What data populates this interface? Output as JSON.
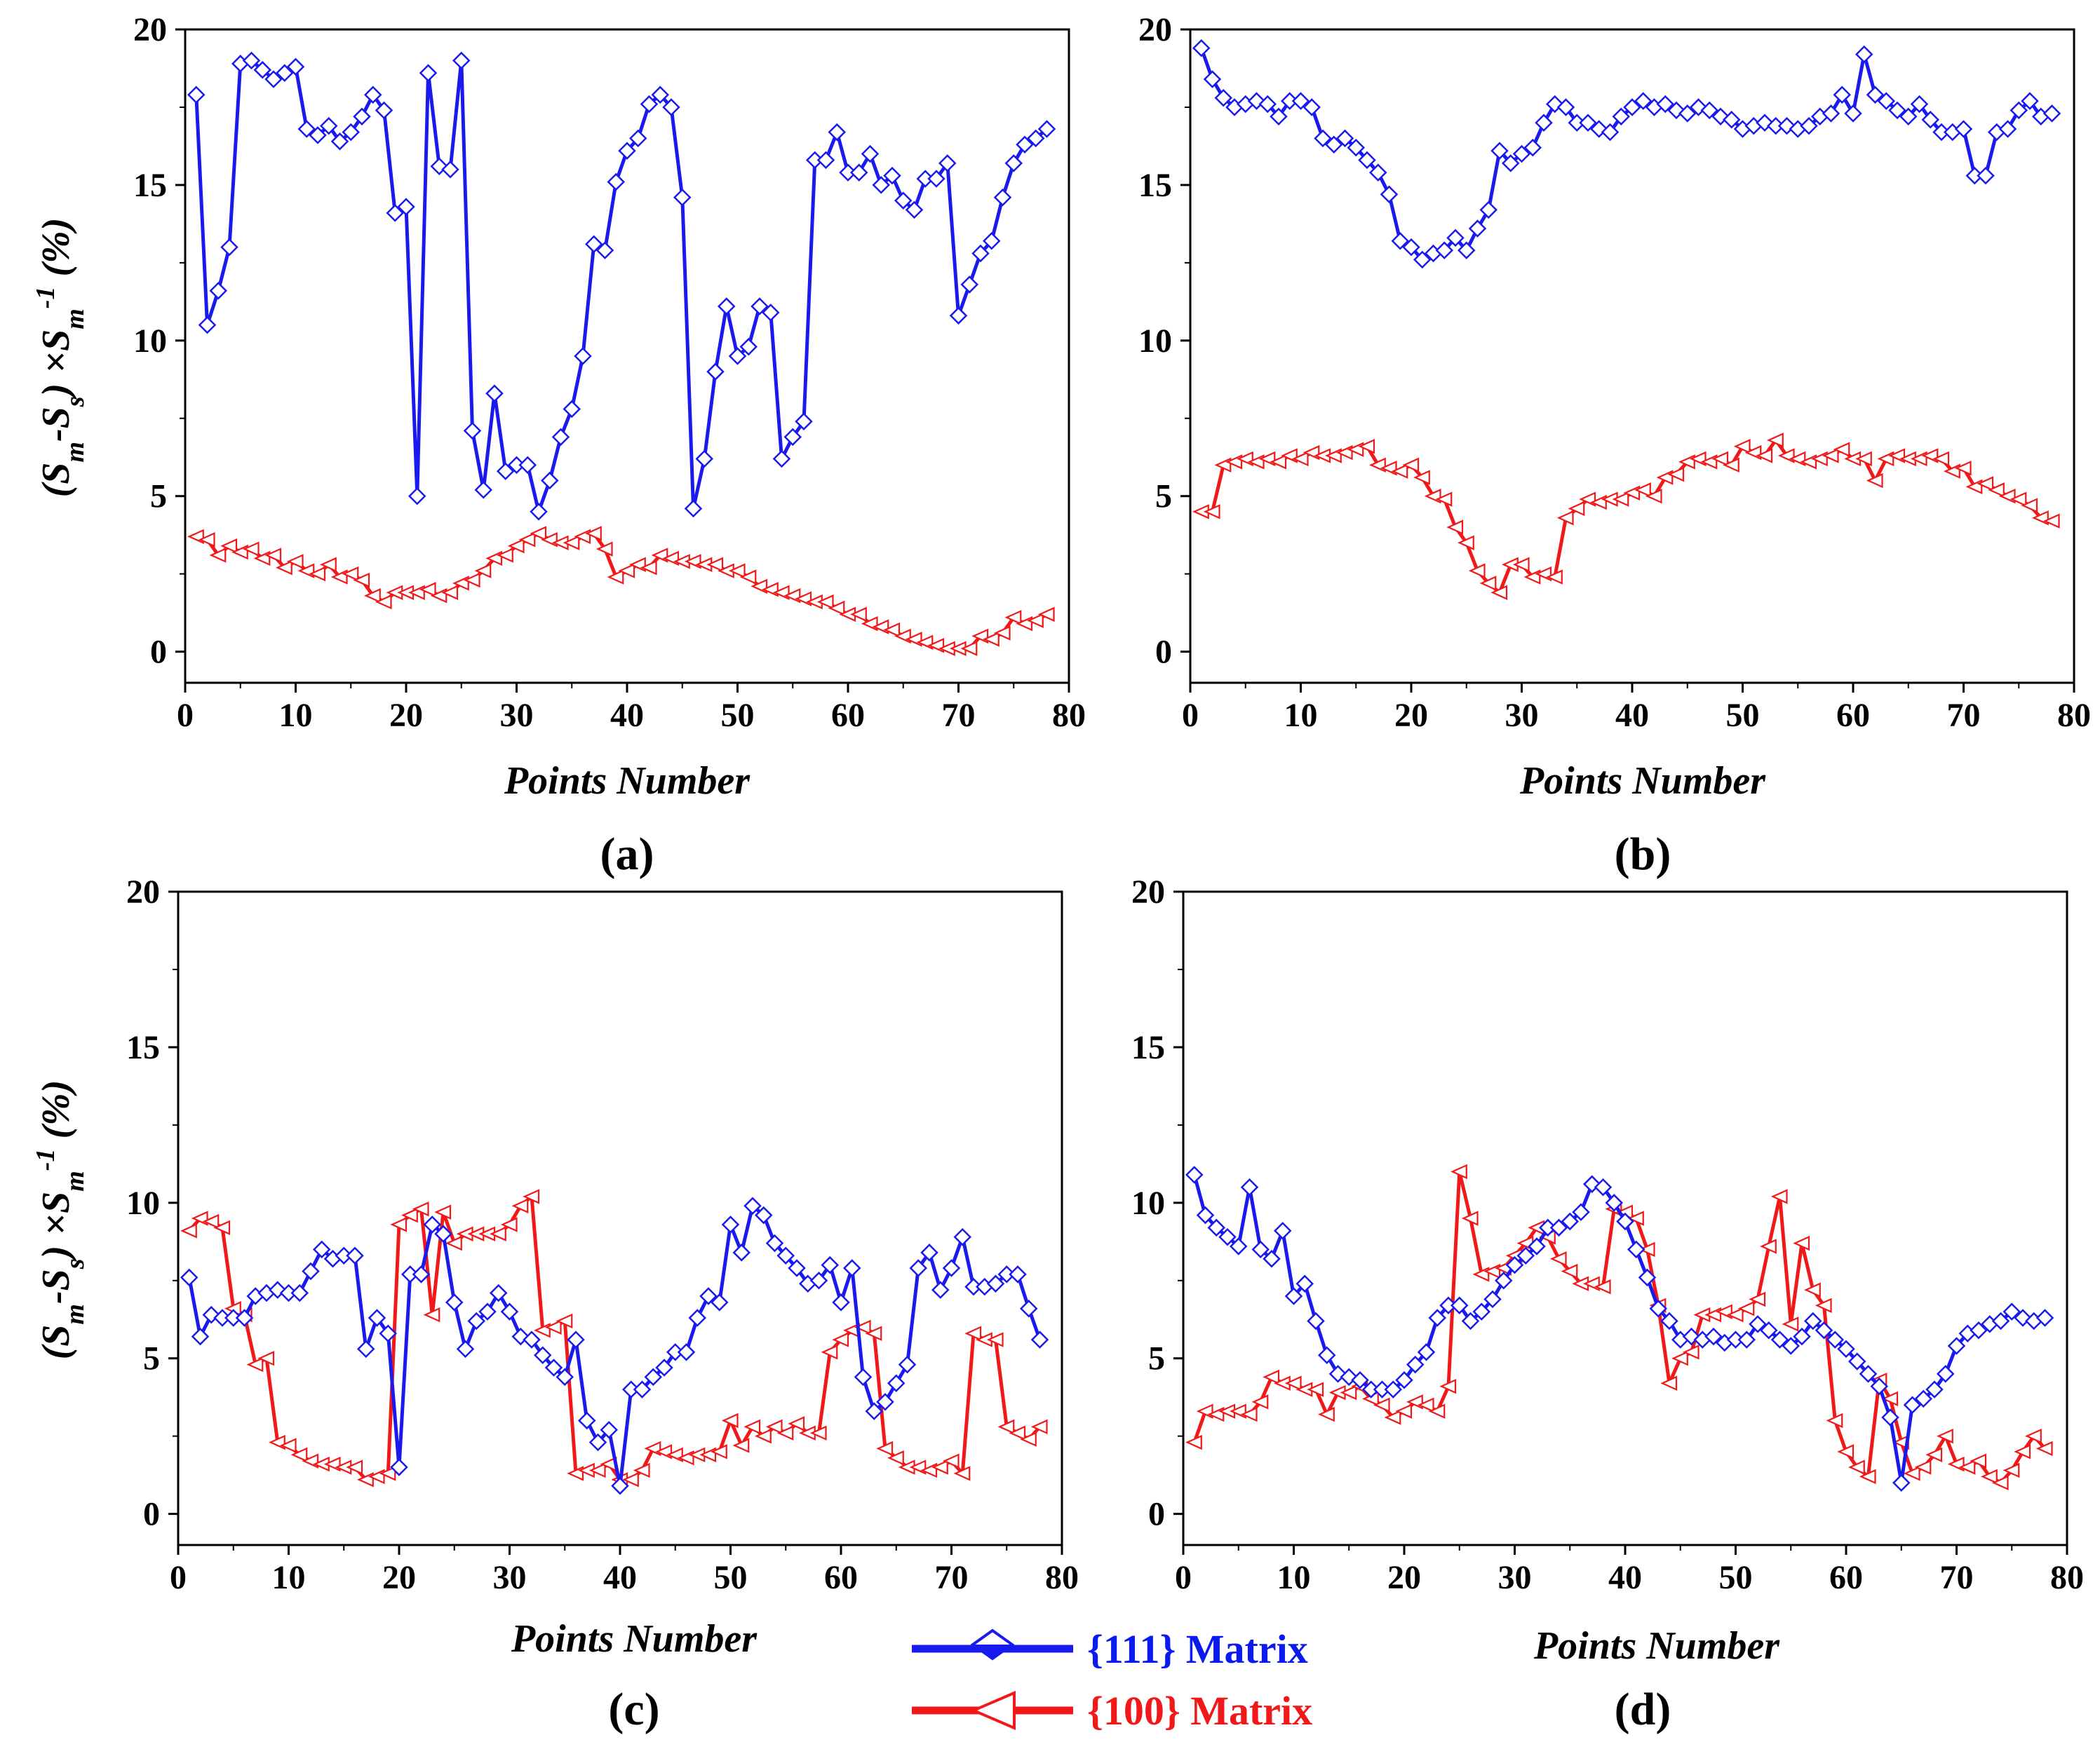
{
  "colors": {
    "blue": "#1a1aee",
    "red": "#f01818"
  },
  "legend": {
    "entries": [
      {
        "label": "{111} Matrix",
        "color": "#1a1aee",
        "marker": "diamond"
      },
      {
        "label": "{100} Matrix",
        "color": "#f01818",
        "marker": "triangle-left"
      }
    ]
  },
  "chart_data": [
    {
      "type": "line",
      "panel_label": "(a)",
      "xlabel": "Points Number",
      "ylabel": "(Sm-Ss) ×Sm-1 (%)",
      "ylabel_parts": [
        "(S",
        "m",
        "-S",
        "s",
        ") ×S",
        "m",
        "-1",
        " (%)"
      ],
      "xlim": [
        0,
        80
      ],
      "ylim": [
        -1,
        20
      ],
      "xticks": [
        0,
        10,
        20,
        30,
        40,
        50,
        60,
        70,
        80
      ],
      "yticks": [
        0,
        5,
        10,
        15,
        20
      ],
      "grid": false,
      "x": [
        1,
        2,
        3,
        4,
        5,
        6,
        7,
        8,
        9,
        10,
        11,
        12,
        13,
        14,
        15,
        16,
        17,
        18,
        19,
        20,
        21,
        22,
        23,
        24,
        25,
        26,
        27,
        28,
        29,
        30,
        31,
        32,
        33,
        34,
        35,
        36,
        37,
        38,
        39,
        40,
        41,
        42,
        43,
        44,
        45,
        46,
        47,
        48,
        49,
        50,
        51,
        52,
        53,
        54,
        55,
        56,
        57,
        58,
        59,
        60,
        61,
        62,
        63,
        64,
        65,
        66,
        67,
        68,
        69,
        70,
        71,
        72,
        73,
        74,
        75,
        76,
        77,
        78
      ],
      "series": [
        {
          "name": "{111} Matrix",
          "color": "#1a1aee",
          "marker": "diamond",
          "values": [
            17.9,
            10.5,
            11.6,
            13.0,
            18.9,
            19.0,
            18.7,
            18.4,
            18.6,
            18.8,
            16.8,
            16.6,
            16.9,
            16.4,
            16.7,
            17.2,
            17.9,
            17.4,
            14.1,
            14.3,
            5.0,
            18.6,
            15.6,
            15.5,
            19.0,
            7.1,
            5.2,
            8.3,
            5.8,
            6.0,
            6.0,
            4.5,
            5.5,
            6.9,
            7.8,
            9.5,
            13.1,
            12.9,
            15.1,
            16.1,
            16.5,
            17.6,
            17.9,
            17.5,
            14.6,
            4.6,
            6.2,
            9.0,
            11.1,
            9.5,
            9.8,
            11.1,
            10.9,
            6.2,
            6.9,
            7.4,
            15.8,
            15.8,
            16.7,
            15.4,
            15.4,
            16.0,
            15.0,
            15.3,
            14.5,
            14.2,
            15.2,
            15.2,
            15.7,
            10.8,
            11.8,
            12.8,
            13.2,
            14.6,
            15.7,
            16.3,
            16.5,
            16.8
          ]
        },
        {
          "name": "{100} Matrix",
          "color": "#f01818",
          "marker": "triangle-left",
          "values": [
            3.7,
            3.6,
            3.1,
            3.4,
            3.2,
            3.3,
            3.0,
            3.1,
            2.7,
            2.9,
            2.6,
            2.5,
            2.8,
            2.4,
            2.5,
            2.3,
            1.8,
            1.6,
            1.9,
            1.9,
            1.9,
            2.0,
            1.8,
            1.9,
            2.2,
            2.3,
            2.6,
            3.0,
            3.1,
            3.4,
            3.6,
            3.8,
            3.6,
            3.5,
            3.5,
            3.7,
            3.8,
            3.3,
            2.4,
            2.6,
            2.8,
            2.7,
            3.1,
            3.0,
            2.9,
            2.9,
            2.8,
            2.8,
            2.6,
            2.6,
            2.4,
            2.1,
            2.0,
            1.9,
            1.8,
            1.7,
            1.6,
            1.6,
            1.4,
            1.2,
            1.2,
            0.9,
            0.8,
            0.7,
            0.5,
            0.4,
            0.3,
            0.2,
            0.1,
            0.1,
            0.1,
            0.5,
            0.4,
            0.6,
            1.1,
            0.9,
            1.0,
            1.2
          ]
        }
      ]
    },
    {
      "type": "line",
      "panel_label": "(b)",
      "xlabel": "Points Number",
      "ylabel": "",
      "xlim": [
        0,
        80
      ],
      "ylim": [
        -1,
        20
      ],
      "xticks": [
        0,
        10,
        20,
        30,
        40,
        50,
        60,
        70,
        80
      ],
      "yticks": [
        0,
        5,
        10,
        15,
        20
      ],
      "grid": false,
      "x": [
        1,
        2,
        3,
        4,
        5,
        6,
        7,
        8,
        9,
        10,
        11,
        12,
        13,
        14,
        15,
        16,
        17,
        18,
        19,
        20,
        21,
        22,
        23,
        24,
        25,
        26,
        27,
        28,
        29,
        30,
        31,
        32,
        33,
        34,
        35,
        36,
        37,
        38,
        39,
        40,
        41,
        42,
        43,
        44,
        45,
        46,
        47,
        48,
        49,
        50,
        51,
        52,
        53,
        54,
        55,
        56,
        57,
        58,
        59,
        60,
        61,
        62,
        63,
        64,
        65,
        66,
        67,
        68,
        69,
        70,
        71,
        72,
        73,
        74,
        75,
        76,
        77,
        78
      ],
      "series": [
        {
          "name": "{111} Matrix",
          "color": "#1a1aee",
          "marker": "diamond",
          "values": [
            19.4,
            18.4,
            17.8,
            17.5,
            17.6,
            17.7,
            17.6,
            17.2,
            17.7,
            17.7,
            17.5,
            16.5,
            16.3,
            16.5,
            16.2,
            15.8,
            15.4,
            14.7,
            13.2,
            13.0,
            12.6,
            12.8,
            12.9,
            13.3,
            12.9,
            13.6,
            14.2,
            16.1,
            15.7,
            16.0,
            16.2,
            17.0,
            17.6,
            17.5,
            17.0,
            17.0,
            16.8,
            16.7,
            17.2,
            17.5,
            17.7,
            17.5,
            17.6,
            17.4,
            17.3,
            17.5,
            17.4,
            17.2,
            17.1,
            16.8,
            16.9,
            17.0,
            16.9,
            16.9,
            16.8,
            16.9,
            17.2,
            17.3,
            17.9,
            17.3,
            19.2,
            17.9,
            17.7,
            17.4,
            17.2,
            17.6,
            17.1,
            16.7,
            16.7,
            16.8,
            15.3,
            15.3,
            16.7,
            16.8,
            17.4,
            17.7,
            17.2,
            17.3
          ]
        },
        {
          "name": "{100} Matrix",
          "color": "#f01818",
          "marker": "triangle-left",
          "values": [
            4.5,
            4.5,
            6.0,
            6.1,
            6.2,
            6.1,
            6.2,
            6.1,
            6.3,
            6.2,
            6.4,
            6.3,
            6.3,
            6.4,
            6.5,
            6.6,
            6.0,
            5.9,
            5.8,
            6.0,
            5.6,
            5.0,
            4.9,
            4.0,
            3.5,
            2.6,
            2.2,
            1.9,
            2.8,
            2.8,
            2.4,
            2.5,
            2.4,
            4.3,
            4.6,
            4.9,
            4.8,
            4.9,
            4.9,
            5.1,
            5.2,
            5.0,
            5.6,
            5.7,
            6.1,
            6.2,
            6.1,
            6.2,
            6.0,
            6.6,
            6.4,
            6.3,
            6.8,
            6.3,
            6.2,
            6.1,
            6.2,
            6.3,
            6.5,
            6.2,
            6.2,
            5.5,
            6.2,
            6.3,
            6.2,
            6.2,
            6.3,
            6.2,
            5.8,
            5.9,
            5.3,
            5.4,
            5.2,
            5.0,
            4.9,
            4.7,
            4.3,
            4.2
          ]
        }
      ]
    },
    {
      "type": "line",
      "panel_label": "(c)",
      "xlabel": "Points Number",
      "ylabel": "(Sm-Ss) ×Sm-1 (%)",
      "ylabel_parts": [
        "(S",
        "m",
        "-S",
        "s",
        ") ×S",
        "m",
        "-1",
        " (%)"
      ],
      "xlim": [
        0,
        80
      ],
      "ylim": [
        -1,
        20
      ],
      "xticks": [
        0,
        10,
        20,
        30,
        40,
        50,
        60,
        70,
        80
      ],
      "yticks": [
        0,
        5,
        10,
        15,
        20
      ],
      "grid": false,
      "x": [
        1,
        2,
        3,
        4,
        5,
        6,
        7,
        8,
        9,
        10,
        11,
        12,
        13,
        14,
        15,
        16,
        17,
        18,
        19,
        20,
        21,
        22,
        23,
        24,
        25,
        26,
        27,
        28,
        29,
        30,
        31,
        32,
        33,
        34,
        35,
        36,
        37,
        38,
        39,
        40,
        41,
        42,
        43,
        44,
        45,
        46,
        47,
        48,
        49,
        50,
        51,
        52,
        53,
        54,
        55,
        56,
        57,
        58,
        59,
        60,
        61,
        62,
        63,
        64,
        65,
        66,
        67,
        68,
        69,
        70,
        71,
        72,
        73,
        74,
        75,
        76,
        77,
        78
      ],
      "series": [
        {
          "name": "{111} Matrix",
          "color": "#1a1aee",
          "marker": "diamond",
          "values": [
            7.6,
            5.7,
            6.4,
            6.3,
            6.3,
            6.3,
            7.0,
            7.1,
            7.2,
            7.1,
            7.1,
            7.8,
            8.5,
            8.2,
            8.3,
            8.3,
            5.3,
            6.3,
            5.8,
            1.5,
            7.7,
            7.7,
            9.3,
            9.0,
            6.8,
            5.3,
            6.2,
            6.5,
            7.1,
            6.5,
            5.7,
            5.6,
            5.1,
            4.7,
            4.4,
            5.6,
            3.0,
            2.3,
            2.7,
            0.9,
            4.0,
            4.0,
            4.4,
            4.7,
            5.2,
            5.2,
            6.3,
            7.0,
            6.8,
            9.3,
            8.4,
            9.9,
            9.6,
            8.7,
            8.3,
            7.9,
            7.4,
            7.5,
            8.0,
            6.8,
            7.9,
            4.4,
            3.3,
            3.6,
            4.2,
            4.8,
            7.9,
            8.4,
            7.2,
            7.9,
            8.9,
            7.3,
            7.3,
            7.4,
            7.7,
            7.7,
            6.6,
            5.6
          ]
        },
        {
          "name": "{100} Matrix",
          "color": "#f01818",
          "marker": "triangle-left",
          "values": [
            9.1,
            9.5,
            9.4,
            9.2,
            6.6,
            6.4,
            4.8,
            5.0,
            2.3,
            2.2,
            1.9,
            1.7,
            1.6,
            1.6,
            1.5,
            1.5,
            1.1,
            1.2,
            1.3,
            9.3,
            9.6,
            9.8,
            6.4,
            9.7,
            8.7,
            9.0,
            9.0,
            9.0,
            9.0,
            9.3,
            9.9,
            10.2,
            5.9,
            6.0,
            6.2,
            1.3,
            1.4,
            1.4,
            1.6,
            1.1,
            1.1,
            1.4,
            2.1,
            2.0,
            1.9,
            1.8,
            1.9,
            1.9,
            2.0,
            3.0,
            2.2,
            2.8,
            2.5,
            2.8,
            2.6,
            2.9,
            2.6,
            2.6,
            5.2,
            5.6,
            5.9,
            6.0,
            5.8,
            2.1,
            1.8,
            1.5,
            1.5,
            1.4,
            1.5,
            1.7,
            1.3,
            5.8,
            5.6,
            5.6,
            2.8,
            2.6,
            2.4,
            2.8
          ]
        }
      ]
    },
    {
      "type": "line",
      "panel_label": "(d)",
      "xlabel": "Points Number",
      "ylabel": "",
      "xlim": [
        0,
        80
      ],
      "ylim": [
        -1,
        20
      ],
      "xticks": [
        0,
        10,
        20,
        30,
        40,
        50,
        60,
        70,
        80
      ],
      "yticks": [
        0,
        5,
        10,
        15,
        20
      ],
      "grid": false,
      "x": [
        1,
        2,
        3,
        4,
        5,
        6,
        7,
        8,
        9,
        10,
        11,
        12,
        13,
        14,
        15,
        16,
        17,
        18,
        19,
        20,
        21,
        22,
        23,
        24,
        25,
        26,
        27,
        28,
        29,
        30,
        31,
        32,
        33,
        34,
        35,
        36,
        37,
        38,
        39,
        40,
        41,
        42,
        43,
        44,
        45,
        46,
        47,
        48,
        49,
        50,
        51,
        52,
        53,
        54,
        55,
        56,
        57,
        58,
        59,
        60,
        61,
        62,
        63,
        64,
        65,
        66,
        67,
        68,
        69,
        70,
        71,
        72,
        73,
        74,
        75,
        76,
        77,
        78
      ],
      "series": [
        {
          "name": "{111} Matrix",
          "color": "#1a1aee",
          "marker": "diamond",
          "values": [
            10.9,
            9.6,
            9.2,
            8.9,
            8.6,
            10.5,
            8.5,
            8.2,
            9.1,
            7.0,
            7.4,
            6.2,
            5.1,
            4.5,
            4.4,
            4.3,
            4.0,
            4.0,
            4.0,
            4.3,
            4.8,
            5.2,
            6.3,
            6.7,
            6.7,
            6.2,
            6.5,
            6.9,
            7.5,
            8.0,
            8.3,
            8.6,
            9.2,
            9.2,
            9.4,
            9.7,
            10.6,
            10.5,
            10.0,
            9.4,
            8.5,
            7.6,
            6.6,
            6.2,
            5.6,
            5.7,
            5.6,
            5.7,
            5.5,
            5.6,
            5.6,
            6.1,
            5.9,
            5.6,
            5.4,
            5.7,
            6.2,
            5.9,
            5.6,
            5.3,
            4.9,
            4.5,
            4.1,
            3.1,
            1.0,
            3.5,
            3.7,
            4.0,
            4.5,
            5.4,
            5.8,
            5.9,
            6.1,
            6.2,
            6.5,
            6.3,
            6.2,
            6.3
          ]
        },
        {
          "name": "{100} Matrix",
          "color": "#f01818",
          "marker": "triangle-left",
          "values": [
            2.3,
            3.3,
            3.2,
            3.3,
            3.3,
            3.2,
            3.6,
            4.4,
            4.2,
            4.2,
            4.0,
            4.0,
            3.2,
            3.9,
            3.9,
            4.1,
            3.7,
            3.5,
            3.1,
            3.3,
            3.6,
            3.5,
            3.3,
            4.1,
            11.0,
            9.5,
            7.7,
            7.8,
            7.9,
            8.3,
            8.7,
            9.2,
            8.9,
            8.2,
            7.8,
            7.4,
            7.4,
            7.3,
            9.8,
            9.7,
            9.5,
            8.5,
            6.7,
            4.2,
            5.0,
            5.2,
            6.4,
            6.4,
            6.5,
            6.4,
            6.6,
            6.9,
            8.6,
            10.2,
            6.1,
            8.7,
            7.2,
            6.7,
            3.0,
            2.0,
            1.5,
            1.2,
            4.3,
            3.7,
            2.3,
            1.3,
            1.5,
            1.9,
            2.5,
            1.6,
            1.5,
            1.7,
            1.2,
            1.0,
            1.4,
            2.0,
            2.5,
            2.1
          ]
        }
      ]
    }
  ]
}
